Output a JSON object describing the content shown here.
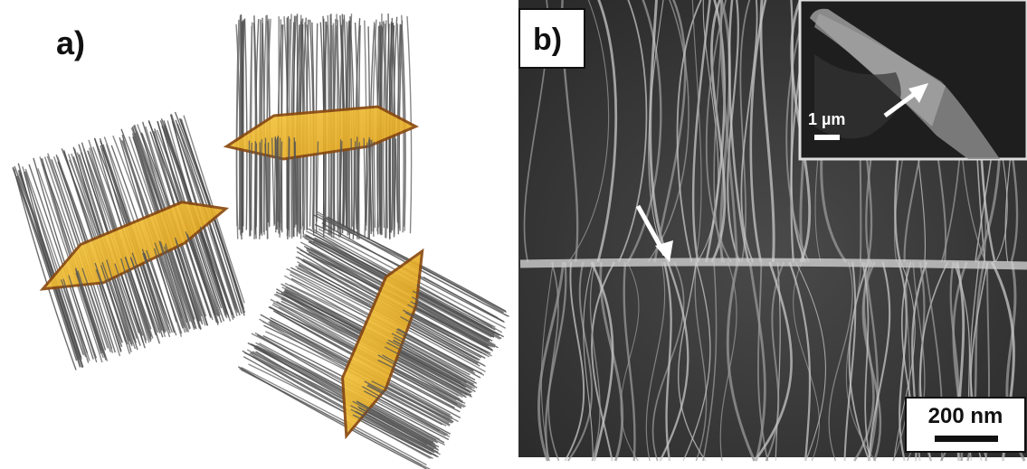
{
  "panels": [
    {
      "label": "a)"
    },
    {
      "label": "b)",
      "inset_scale": "1 µm",
      "scale": "200 nm"
    }
  ]
}
